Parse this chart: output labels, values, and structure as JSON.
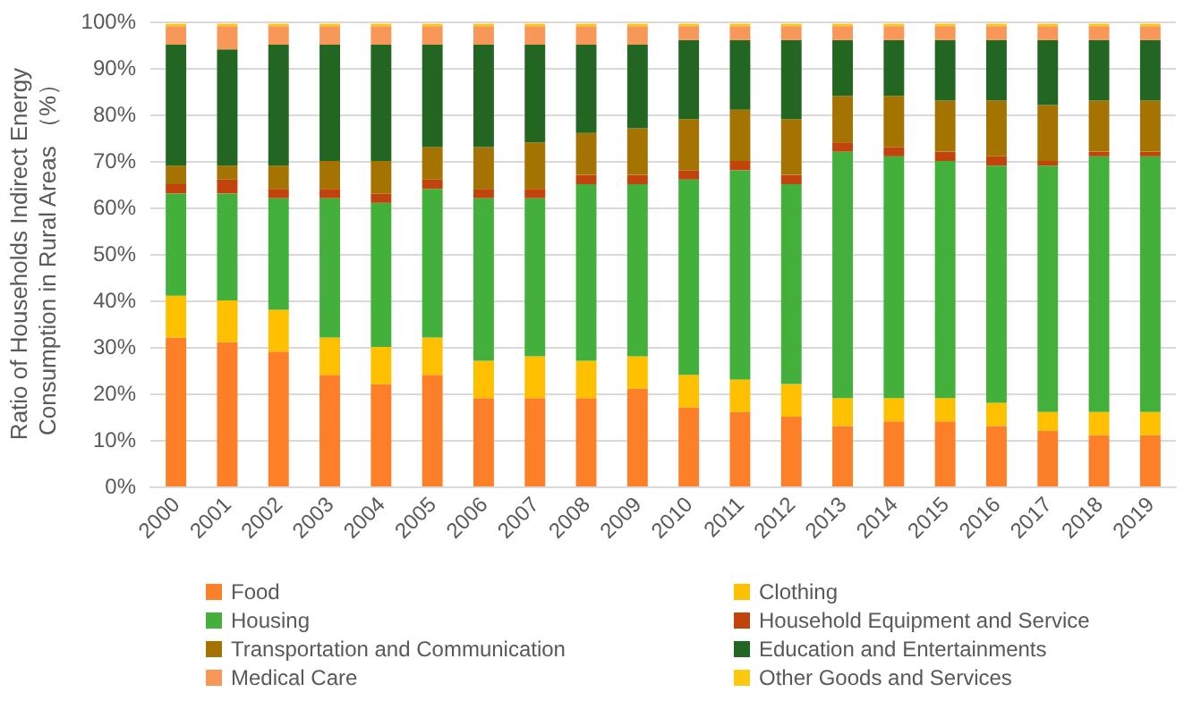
{
  "chart_data": {
    "type": "bar",
    "stacked": true,
    "ylabel": "Ratio of Households Indirect Energy Consumption in Rural Areas （%）",
    "categories": [
      "2000",
      "2001",
      "2002",
      "2003",
      "2004",
      "2005",
      "2006",
      "2007",
      "2008",
      "2009",
      "2010",
      "2011",
      "2012",
      "2013",
      "2014",
      "2015",
      "2016",
      "2017",
      "2018",
      "2019"
    ],
    "series": [
      {
        "name": "Food",
        "color": "#fd7f28",
        "values": [
          32,
          31,
          29,
          24,
          22,
          24,
          19,
          19,
          19,
          21,
          17,
          16,
          15,
          13,
          14,
          14,
          13,
          12,
          11,
          11
        ]
      },
      {
        "name": "Clothing",
        "color": "#ffc000",
        "values": [
          9,
          9,
          9,
          8,
          8,
          8,
          8,
          9,
          8,
          7,
          7,
          7,
          7,
          6,
          5,
          5,
          5,
          4,
          5,
          5
        ]
      },
      {
        "name": "Housing",
        "color": "#43b03b",
        "values": [
          22,
          23,
          24,
          30,
          31,
          32,
          35,
          34,
          38,
          37,
          42,
          45,
          43,
          53,
          52,
          51,
          51,
          53,
          55,
          55
        ]
      },
      {
        "name": "Household Equipment and Service",
        "color": "#c0440c",
        "values": [
          2,
          3,
          2,
          2,
          2,
          2,
          2,
          2,
          2,
          2,
          2,
          2,
          2,
          2,
          2,
          2,
          2,
          1,
          1,
          1
        ]
      },
      {
        "name": "Transportation and Communication",
        "color": "#a57300",
        "values": [
          4,
          3,
          5,
          6,
          7,
          7,
          9,
          10,
          9,
          10,
          11,
          11,
          12,
          10,
          11,
          11,
          12,
          12,
          11,
          11
        ]
      },
      {
        "name": "Education and Entertainments",
        "color": "#226622",
        "values": [
          26,
          25,
          26,
          25,
          25,
          22,
          22,
          21,
          19,
          18,
          17,
          15,
          17,
          12,
          12,
          13,
          13,
          14,
          13,
          13
        ]
      },
      {
        "name": "Medical Care",
        "color": "#f89858",
        "values": [
          4,
          5,
          4,
          4,
          4,
          4,
          4,
          4,
          4,
          4,
          3,
          3,
          3,
          3,
          3,
          3,
          3,
          3,
          3,
          3
        ]
      },
      {
        "name": "Other Goods and Services",
        "color": "#fcc810",
        "values": [
          0.5,
          0.5,
          0.5,
          0.5,
          0.5,
          0.5,
          0.5,
          0.5,
          0.5,
          0.5,
          0.5,
          0.5,
          0.5,
          0.5,
          0.5,
          0.5,
          0.5,
          0.5,
          0.5,
          0.5
        ]
      }
    ],
    "ylim": [
      0,
      100
    ],
    "yticks": [
      {
        "value": 0,
        "label": "0%"
      },
      {
        "value": 10,
        "label": "10%"
      },
      {
        "value": 20,
        "label": "20%"
      },
      {
        "value": 30,
        "label": "30%"
      },
      {
        "value": 40,
        "label": "40%"
      },
      {
        "value": 50,
        "label": "50%"
      },
      {
        "value": 60,
        "label": "60%"
      },
      {
        "value": 70,
        "label": "70%"
      },
      {
        "value": 80,
        "label": "80%"
      },
      {
        "value": 90,
        "label": "90%"
      },
      {
        "value": 100,
        "label": "100%"
      }
    ],
    "grid": "y",
    "legend": "bottom"
  }
}
